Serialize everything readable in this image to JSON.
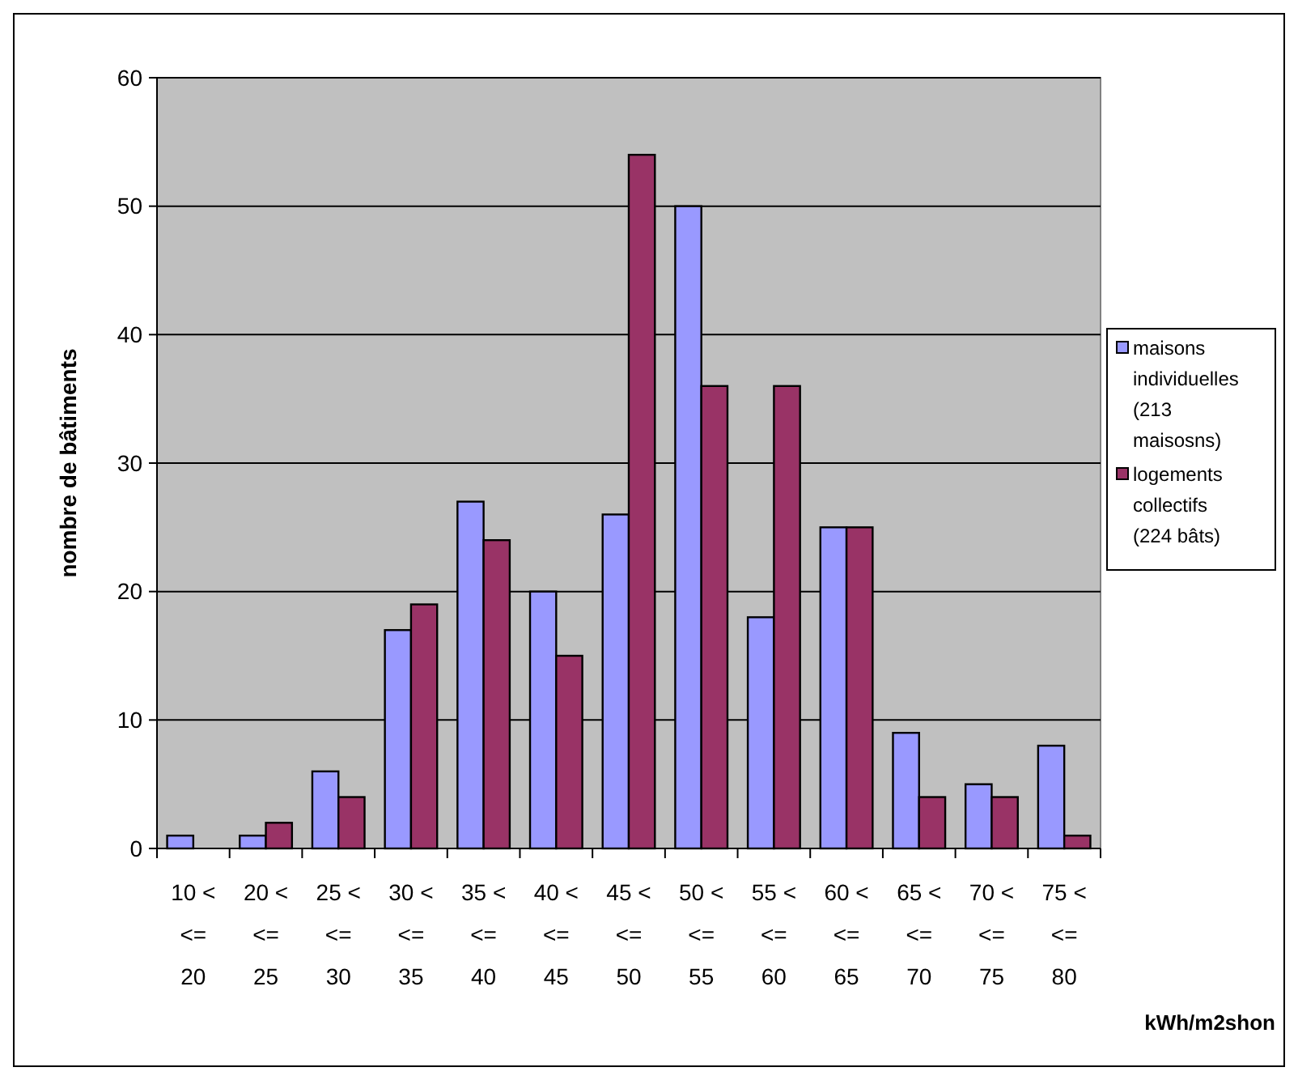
{
  "chart_data": {
    "type": "bar",
    "xlabel": "kWh/m2shon",
    "ylabel": "nombre de bâtiments",
    "categories": [
      "10 <\n<=\n20",
      "20 <\n<=\n25",
      "25 <\n<=\n30",
      "30 <\n<=\n35",
      "35 <\n<=\n40",
      "40 <\n<=\n45",
      "45 <\n<=\n50",
      "50 <\n<=\n55",
      "55 <\n<=\n60",
      "60 <\n<=\n65",
      "65 <\n<=\n70",
      "70 <\n<=\n75",
      "75 <\n<=\n80"
    ],
    "series": [
      {
        "name": "maisons individuelles (213 maisosns)",
        "color": "#9999ff",
        "values": [
          1,
          1,
          6,
          17,
          27,
          20,
          26,
          50,
          18,
          25,
          9,
          5,
          8
        ]
      },
      {
        "name": "logements collectifs (224 bâts)",
        "color": "#993366",
        "values": [
          0,
          2,
          4,
          19,
          24,
          15,
          54,
          36,
          36,
          25,
          4,
          4,
          1
        ]
      }
    ],
    "ylim": [
      0,
      60
    ],
    "yticks": [
      0,
      10,
      20,
      30,
      40,
      50,
      60
    ],
    "grid": "y",
    "legend": "right"
  }
}
